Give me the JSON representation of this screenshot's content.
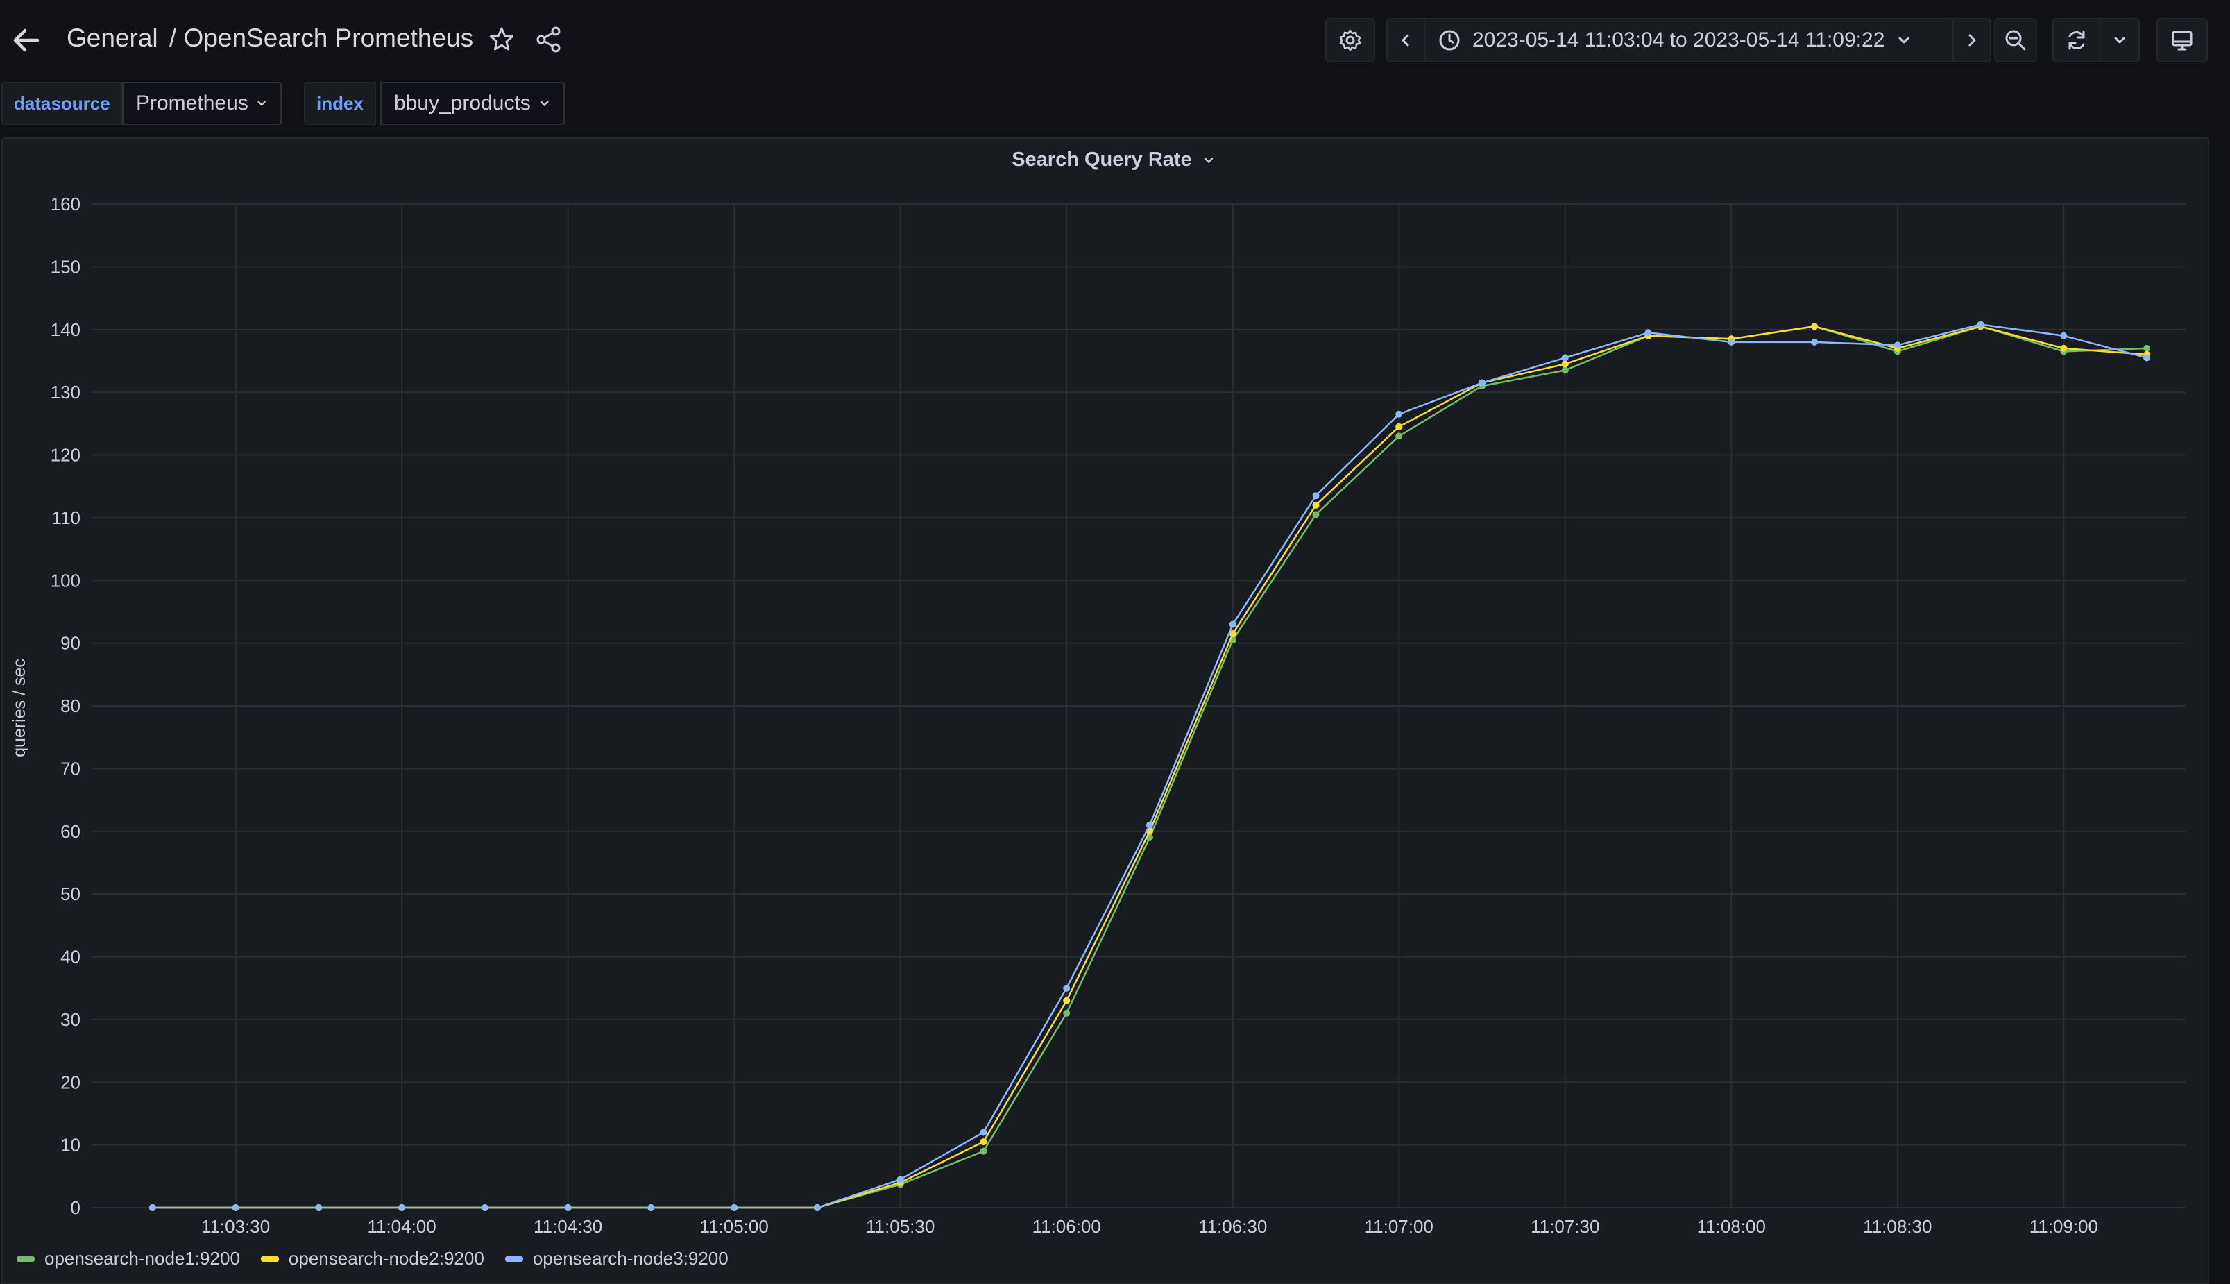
{
  "header": {
    "folder": "General",
    "dashboard_title": "/ OpenSearch Prometheus",
    "time_range": "2023-05-14 11:03:04 to 2023-05-14 11:09:22"
  },
  "variables": [
    {
      "label": "datasource",
      "value": "Prometheus"
    },
    {
      "label": "index",
      "value": "bbuy_products"
    }
  ],
  "panel": {
    "title": "Search Query Rate"
  },
  "colors": {
    "node1": "#73bf69",
    "node2": "#fade2a",
    "node3": "#8ab8ff",
    "background": "#111217",
    "panel": "#181b1f"
  },
  "icons": [
    "arrow-left-icon",
    "star-icon",
    "share-icon",
    "gear-icon",
    "chevron-left-icon",
    "clock-icon",
    "chevron-down-icon",
    "chevron-right-icon",
    "zoom-out-icon",
    "refresh-icon",
    "monitor-icon"
  ],
  "chart_data": {
    "type": "line",
    "title": "Search Query Rate",
    "ylabel": "queries / sec",
    "xlabel": "",
    "ylim": [
      0,
      160
    ],
    "y_ticks": [
      "0",
      "10",
      "20",
      "30",
      "40",
      "50",
      "60",
      "70",
      "80",
      "90",
      "100",
      "110",
      "120",
      "130",
      "140",
      "150",
      "160"
    ],
    "x_ticks": [
      "11:03:30",
      "11:04:00",
      "11:04:30",
      "11:05:00",
      "11:05:30",
      "11:06:00",
      "11:06:30",
      "11:07:00",
      "11:07:30",
      "11:08:00",
      "11:08:30",
      "11:09:00"
    ],
    "x_tick_seconds": [
      210,
      240,
      270,
      300,
      330,
      360,
      390,
      420,
      450,
      480,
      510,
      540
    ],
    "x_range_seconds": [
      184,
      562
    ],
    "x": [
      195,
      210,
      225,
      240,
      255,
      270,
      285,
      300,
      315,
      330,
      345,
      360,
      375,
      390,
      405,
      420,
      435,
      450,
      465,
      480,
      495,
      510,
      525,
      540,
      555
    ],
    "x_labels": [
      "11:03:15",
      "11:03:30",
      "11:03:45",
      "11:04:00",
      "11:04:15",
      "11:04:30",
      "11:04:45",
      "11:05:00",
      "11:05:15",
      "11:05:30",
      "11:05:45",
      "11:06:00",
      "11:06:15",
      "11:06:30",
      "11:06:45",
      "11:07:00",
      "11:07:15",
      "11:07:30",
      "11:07:45",
      "11:08:00",
      "11:08:15",
      "11:08:30",
      "11:08:45",
      "11:09:00",
      "11:09:15"
    ],
    "legend_placement": "bottom-left",
    "grid": true,
    "series": [
      {
        "name": "opensearch-node1:9200",
        "color": "#73bf69",
        "values": [
          0,
          0,
          0,
          0,
          0,
          0,
          0,
          0,
          0,
          3.7,
          9.0,
          31,
          59,
          90.5,
          110.5,
          123,
          131,
          133.5,
          139,
          138.5,
          140.5,
          136.5,
          140.5,
          136.5,
          137
        ]
      },
      {
        "name": "opensearch-node2:9200",
        "color": "#fade2a",
        "values": [
          0,
          0,
          0,
          0,
          0,
          0,
          0,
          0,
          0,
          4.0,
          10.5,
          33,
          60,
          91.5,
          112,
          124.5,
          131.5,
          134.5,
          139,
          138.5,
          140.5,
          137,
          140.5,
          137,
          136
        ]
      },
      {
        "name": "opensearch-node3:9200",
        "color": "#8ab8ff",
        "values": [
          0,
          0,
          0,
          0,
          0,
          0,
          0,
          0,
          0,
          4.5,
          12.0,
          35,
          61,
          93,
          113.5,
          126.5,
          131.5,
          135.5,
          139.5,
          138,
          138,
          137.5,
          140.8,
          139,
          135.5
        ]
      }
    ]
  }
}
